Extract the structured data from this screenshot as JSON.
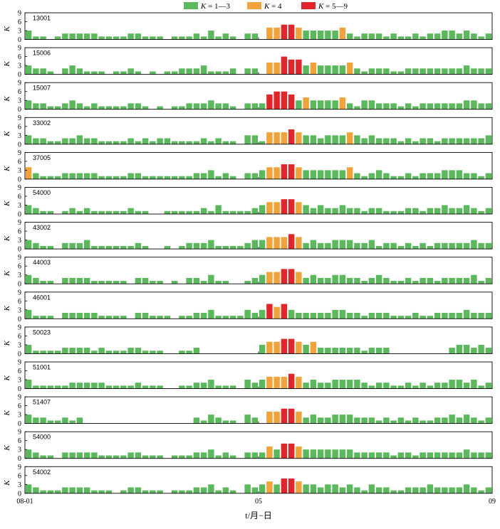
{
  "chart_data": {
    "type": "bar",
    "legend": {
      "placement": "top-center",
      "entries": [
        {
          "label": "K = 1—3",
          "var": "K",
          "range": " = 1—3",
          "color": "#5cb85c",
          "kmin": 1,
          "kmax": 3
        },
        {
          "label": "K = 4",
          "var": "K",
          "range": " = 4",
          "color": "#f0a33a",
          "kmin": 4,
          "kmax": 4
        },
        {
          "label": "K = 5—9",
          "var": "K",
          "range": " = 5—9",
          "color": "#e0262a",
          "kmin": 5,
          "kmax": 9
        }
      ]
    },
    "ylabel": "K",
    "ylim": [
      0,
      9
    ],
    "yticks": [
      "0",
      "3",
      "6",
      "9"
    ],
    "xlabel": "t/月−日",
    "xticks": [
      {
        "label": "08-01",
        "index": 0
      },
      {
        "label": "05",
        "index": 32
      },
      {
        "label": "09",
        "index": 64
      }
    ],
    "interval_count": 64,
    "panels": [
      {
        "station": "13001",
        "values": [
          3,
          1,
          1,
          0,
          1,
          2,
          2,
          2,
          2,
          2,
          1,
          1,
          1,
          1,
          2,
          2,
          1,
          1,
          1,
          0,
          1,
          1,
          1,
          2,
          1,
          3,
          1,
          2,
          1,
          0,
          2,
          2,
          0,
          4,
          4,
          5,
          5,
          4,
          3,
          3,
          3,
          3,
          3,
          4,
          2,
          1,
          2,
          2,
          2,
          1,
          2,
          1,
          1,
          2,
          1,
          2,
          2,
          3,
          3,
          2,
          3,
          2,
          1,
          2
        ]
      },
      {
        "station": "15006",
        "values": [
          3,
          2,
          2,
          1,
          0,
          2,
          3,
          2,
          1,
          1,
          1,
          0,
          1,
          1,
          2,
          1,
          0,
          1,
          0,
          1,
          1,
          2,
          2,
          2,
          3,
          1,
          1,
          1,
          2,
          0,
          2,
          2,
          0,
          4,
          4,
          6,
          5,
          5,
          3,
          4,
          3,
          3,
          3,
          3,
          4,
          2,
          1,
          2,
          2,
          2,
          1,
          1,
          2,
          2,
          2,
          2,
          2,
          2,
          2,
          2,
          3,
          2,
          2,
          2
        ]
      },
      {
        "station": "15007",
        "values": [
          3,
          2,
          2,
          1,
          1,
          2,
          3,
          2,
          1,
          2,
          1,
          1,
          1,
          1,
          2,
          2,
          1,
          0,
          1,
          0,
          1,
          1,
          2,
          2,
          2,
          3,
          2,
          2,
          1,
          0,
          2,
          2,
          2,
          5,
          6,
          6,
          5,
          3,
          4,
          3,
          3,
          3,
          3,
          4,
          2,
          1,
          3,
          3,
          2,
          2,
          2,
          1,
          2,
          1,
          2,
          2,
          2,
          2,
          2,
          2,
          3,
          3,
          2,
          2
        ]
      },
      {
        "station": "33002",
        "values": [
          3,
          2,
          2,
          1,
          1,
          2,
          2,
          3,
          2,
          2,
          1,
          1,
          1,
          1,
          2,
          1,
          2,
          1,
          2,
          2,
          1,
          1,
          1,
          1,
          2,
          1,
          2,
          1,
          1,
          0,
          3,
          3,
          1,
          4,
          4,
          4,
          5,
          4,
          3,
          3,
          2,
          3,
          3,
          3,
          4,
          3,
          2,
          3,
          2,
          2,
          2,
          1,
          2,
          1,
          2,
          2,
          1,
          2,
          2,
          2,
          2,
          2,
          2,
          3
        ]
      },
      {
        "station": "37005",
        "values": [
          4,
          2,
          1,
          1,
          1,
          2,
          2,
          2,
          2,
          2,
          1,
          1,
          1,
          1,
          2,
          2,
          1,
          1,
          1,
          1,
          1,
          1,
          1,
          2,
          2,
          3,
          1,
          2,
          1,
          0,
          2,
          2,
          3,
          4,
          4,
          5,
          5,
          4,
          3,
          3,
          3,
          3,
          3,
          3,
          4,
          2,
          1,
          2,
          3,
          2,
          1,
          1,
          2,
          1,
          2,
          2,
          2,
          3,
          3,
          3,
          2,
          2,
          1,
          2
        ]
      },
      {
        "station": "54000",
        "values": [
          3,
          2,
          1,
          1,
          0,
          1,
          2,
          1,
          2,
          1,
          1,
          1,
          1,
          1,
          2,
          1,
          1,
          0,
          0,
          1,
          1,
          1,
          1,
          1,
          2,
          1,
          3,
          1,
          1,
          1,
          1,
          2,
          3,
          4,
          4,
          5,
          5,
          4,
          3,
          2,
          3,
          2,
          2,
          3,
          2,
          2,
          1,
          2,
          2,
          1,
          1,
          1,
          2,
          2,
          1,
          2,
          2,
          3,
          2,
          2,
          3,
          2,
          1,
          2
        ]
      },
      {
        "station": "43002",
        "values": [
          3,
          2,
          1,
          1,
          0,
          2,
          2,
          2,
          3,
          1,
          1,
          1,
          1,
          1,
          1,
          2,
          1,
          0,
          0,
          1,
          0,
          1,
          2,
          2,
          2,
          3,
          1,
          1,
          1,
          1,
          2,
          3,
          3,
          4,
          4,
          4,
          5,
          4,
          2,
          3,
          2,
          2,
          3,
          3,
          3,
          2,
          2,
          3,
          1,
          2,
          2,
          1,
          2,
          1,
          2,
          1,
          2,
          2,
          2,
          2,
          2,
          3,
          2,
          2
        ]
      },
      {
        "station": "44003",
        "values": [
          3,
          2,
          1,
          1,
          0,
          2,
          2,
          2,
          2,
          1,
          1,
          1,
          1,
          1,
          0,
          2,
          2,
          1,
          1,
          0,
          1,
          0,
          2,
          2,
          1,
          3,
          1,
          1,
          0,
          0,
          1,
          2,
          3,
          4,
          4,
          5,
          5,
          4,
          2,
          3,
          2,
          2,
          3,
          3,
          2,
          2,
          1,
          2,
          3,
          2,
          1,
          1,
          2,
          1,
          2,
          2,
          1,
          2,
          2,
          2,
          2,
          3,
          1,
          2
        ]
      },
      {
        "station": "46001",
        "values": [
          3,
          1,
          1,
          1,
          0,
          2,
          2,
          2,
          2,
          2,
          1,
          1,
          1,
          1,
          0,
          2,
          2,
          1,
          1,
          1,
          0,
          1,
          1,
          2,
          2,
          3,
          1,
          1,
          1,
          1,
          3,
          2,
          3,
          5,
          4,
          5,
          3,
          2,
          2,
          2,
          2,
          2,
          3,
          3,
          2,
          2,
          1,
          2,
          2,
          2,
          1,
          1,
          1,
          2,
          1,
          1,
          2,
          2,
          2,
          2,
          3,
          2,
          2,
          2
        ]
      },
      {
        "station": "50023",
        "values": [
          3,
          1,
          1,
          1,
          1,
          2,
          2,
          2,
          2,
          1,
          2,
          1,
          1,
          1,
          2,
          2,
          1,
          1,
          1,
          0,
          0,
          1,
          1,
          2,
          0,
          0,
          0,
          0,
          0,
          0,
          0,
          0,
          3,
          4,
          4,
          5,
          5,
          4,
          3,
          4,
          2,
          2,
          2,
          2,
          2,
          2,
          1,
          2,
          2,
          2,
          0,
          0,
          0,
          0,
          0,
          0,
          0,
          0,
          2,
          3,
          3,
          2,
          3,
          2
        ]
      },
      {
        "station": "51001",
        "values": [
          3,
          1,
          1,
          1,
          1,
          1,
          2,
          2,
          2,
          2,
          2,
          1,
          1,
          1,
          1,
          2,
          1,
          1,
          1,
          0,
          0,
          1,
          1,
          2,
          2,
          3,
          1,
          1,
          1,
          0,
          3,
          2,
          3,
          4,
          4,
          4,
          5,
          4,
          2,
          3,
          2,
          2,
          3,
          3,
          3,
          3,
          2,
          1,
          2,
          2,
          1,
          1,
          2,
          1,
          2,
          1,
          2,
          2,
          3,
          3,
          2,
          3,
          1,
          2
        ]
      },
      {
        "station": "51407",
        "values": [
          3,
          2,
          2,
          1,
          1,
          2,
          1,
          2,
          0,
          0,
          0,
          0,
          0,
          0,
          0,
          0,
          0,
          0,
          0,
          0,
          0,
          0,
          0,
          2,
          1,
          3,
          2,
          1,
          1,
          0,
          3,
          2,
          0,
          4,
          4,
          5,
          5,
          4,
          2,
          3,
          2,
          2,
          3,
          3,
          3,
          2,
          2,
          2,
          1,
          2,
          1,
          2,
          1,
          2,
          1,
          1,
          2,
          2,
          3,
          2,
          3,
          2,
          1,
          2
        ]
      },
      {
        "station": "54000",
        "values": [
          3,
          2,
          1,
          1,
          0,
          2,
          2,
          2,
          2,
          2,
          1,
          1,
          1,
          1,
          2,
          2,
          1,
          1,
          1,
          0,
          1,
          1,
          1,
          2,
          2,
          3,
          1,
          2,
          1,
          0,
          2,
          2,
          2,
          4,
          3,
          5,
          5,
          4,
          3,
          3,
          3,
          3,
          3,
          3,
          3,
          2,
          2,
          2,
          2,
          2,
          1,
          2,
          2,
          1,
          2,
          2,
          2,
          2,
          2,
          2,
          3,
          2,
          2,
          2
        ]
      },
      {
        "station": "54002",
        "values": [
          3,
          2,
          1,
          1,
          1,
          2,
          2,
          2,
          2,
          1,
          1,
          1,
          0,
          1,
          2,
          2,
          1,
          1,
          1,
          0,
          1,
          1,
          1,
          2,
          2,
          3,
          1,
          2,
          1,
          0,
          3,
          2,
          3,
          4,
          3,
          5,
          5,
          4,
          3,
          3,
          2,
          3,
          3,
          2,
          3,
          2,
          1,
          3,
          2,
          2,
          1,
          1,
          2,
          2,
          2,
          3,
          2,
          2,
          2,
          2,
          3,
          2,
          1,
          2
        ]
      }
    ]
  }
}
